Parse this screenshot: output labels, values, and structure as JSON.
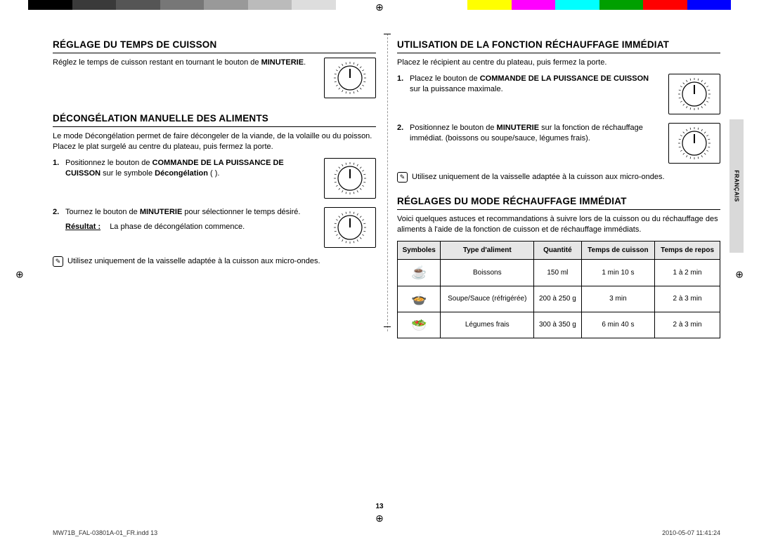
{
  "colorbar": [
    "#000000",
    "#3a3a3a",
    "#555555",
    "#777777",
    "#999999",
    "#bbbbbb",
    "#dddddd",
    "#ffffff",
    "#ffffff",
    "#ffffff",
    "#ffff00",
    "#ff00ff",
    "#00ffff",
    "#00a000",
    "#ff0000",
    "#0000ff"
  ],
  "registration_glyph": "⊕",
  "sidetab_label": "FRANÇAIS",
  "sidetab_bg": "#d9d9d9",
  "page_number": "13",
  "footer_left": "MW71B_FAL-03801A-01_FR.indd   13",
  "footer_right": "2010-05-07     11:41:24",
  "left": {
    "s1": {
      "title": "RÉGLAGE DU TEMPS DE CUISSON",
      "text_a": "Réglez le temps de cuisson restant en tournant le bouton de ",
      "text_b": "MINUTERIE",
      "text_c": "."
    },
    "s2": {
      "title": "DÉCONGÉLATION MANUELLE DES ALIMENTS",
      "intro1": "Le mode Décongélation permet de faire décongeler de la viande, de la volaille ou du poisson.",
      "intro2": "Placez le plat surgelé au centre du plateau, puis fermez la porte.",
      "step1_a": "Positionnez le bouton de ",
      "step1_b": "COMMANDE DE LA PUISSANCE DE CUISSON",
      "step1_c": " sur le symbole ",
      "step1_d": "Décongélation",
      "step1_e": " (  ).",
      "step2_a": "Tournez le bouton de ",
      "step2_b": "MINUTERIE",
      "step2_c": " pour sélectionner le temps désiré.",
      "result_label": "Résultat :",
      "result_text": "La phase de décongélation commence.",
      "note": "Utilisez uniquement de la vaisselle adaptée à la cuisson aux micro-ondes."
    }
  },
  "right": {
    "s1": {
      "title": "UTILISATION DE LA FONCTION RÉCHAUFFAGE IMMÉDIAT",
      "intro": "Placez le récipient au centre du plateau, puis fermez la porte.",
      "step1_a": "Placez le bouton de ",
      "step1_b": "COMMANDE DE LA PUISSANCE DE CUISSON",
      "step1_c": " sur la puissance maximale.",
      "step2_a": "Positionnez le bouton de ",
      "step2_b": "MINUTERIE",
      "step2_c": " sur la fonction de réchauffage immédiat. (boissons ou soupe/sauce, légumes frais).",
      "note": "Utilisez uniquement de la vaisselle adaptée à la cuisson aux micro-ondes."
    },
    "s2": {
      "title": "RÉGLAGES DU MODE RÉCHAUFFAGE IMMÉDIAT",
      "intro": "Voici quelques astuces et recommandations à suivre lors de la cuisson ou du réchauffage des aliments à l'aide de la fonction de cuisson et de réchauffage immédiats.",
      "table": {
        "headers": [
          "Symboles",
          "Type d'aliment",
          "Quantité",
          "Temps de cuisson",
          "Temps de repos"
        ],
        "rows": [
          {
            "sym": "☕",
            "type": "Boissons",
            "qty": "150 ml",
            "cook": "1 min 10 s",
            "rest": "1 à 2 min"
          },
          {
            "sym": "🍲",
            "type": "Soupe/Sauce (réfrigérée)",
            "qty": "200 à 250 g",
            "cook": "3 min",
            "rest": "2 à 3 min"
          },
          {
            "sym": "🥗",
            "type": "Légumes frais",
            "qty": "300 à 350 g",
            "cook": "6 min 40 s",
            "rest": "2 à 3 min"
          }
        ]
      }
    }
  },
  "dial_svg": {
    "stroke": "#000000",
    "fill": "#ffffff"
  }
}
